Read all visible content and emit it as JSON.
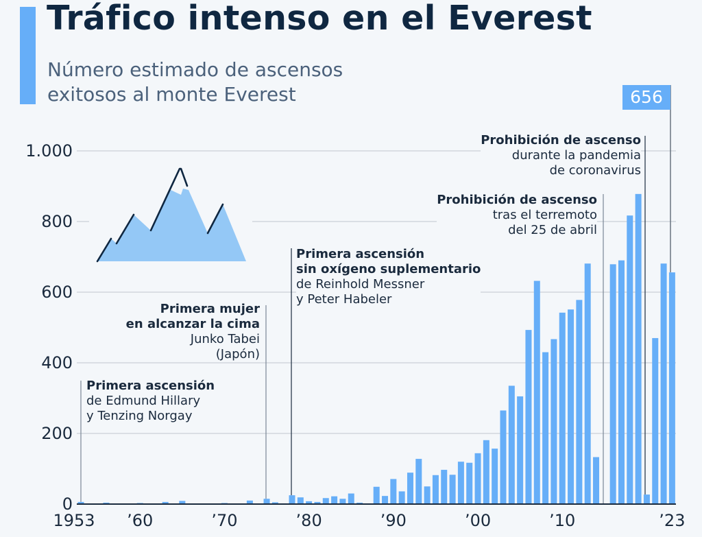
{
  "header": {
    "title": "Tráfico intenso en el Everest",
    "subtitle_line1": "Número estimado de ascensos",
    "subtitle_line2": "exitosos al monte Everest"
  },
  "colors": {
    "bar": "#66aef8",
    "title": "#0f2741",
    "background": "#f4f7fa",
    "mountain": "#94c8f6"
  },
  "icon": "mountain-icon",
  "chart_data": {
    "type": "bar",
    "title": "Tráfico intenso en el Everest",
    "subtitle": "Número estimado de ascensos exitosos al monte Everest",
    "xlabel": "",
    "ylabel": "",
    "ylim": [
      0,
      1000
    ],
    "yticks": [
      0,
      200,
      400,
      600,
      800,
      1000
    ],
    "ytick_labels": [
      "0",
      "200",
      "400",
      "600",
      "800",
      "1.000"
    ],
    "xticks": [
      1953,
      1960,
      1970,
      1980,
      1990,
      2000,
      2010,
      2023
    ],
    "xtick_labels": [
      "1953",
      "’60",
      "’70",
      "’80",
      "’90",
      "’00",
      "’10",
      "’23"
    ],
    "grid": true,
    "x": [
      1953,
      1954,
      1955,
      1956,
      1957,
      1958,
      1959,
      1960,
      1961,
      1962,
      1963,
      1964,
      1965,
      1966,
      1967,
      1968,
      1969,
      1970,
      1971,
      1972,
      1973,
      1974,
      1975,
      1976,
      1977,
      1978,
      1979,
      1980,
      1981,
      1982,
      1983,
      1984,
      1985,
      1986,
      1987,
      1988,
      1989,
      1990,
      1991,
      1992,
      1993,
      1994,
      1995,
      1996,
      1997,
      1998,
      1999,
      2000,
      2001,
      2002,
      2003,
      2004,
      2005,
      2006,
      2007,
      2008,
      2009,
      2010,
      2011,
      2012,
      2013,
      2014,
      2015,
      2016,
      2017,
      2018,
      2019,
      2020,
      2021,
      2022,
      2023
    ],
    "values": [
      6,
      0,
      0,
      4,
      0,
      0,
      0,
      3,
      0,
      0,
      6,
      0,
      9,
      0,
      0,
      0,
      0,
      3,
      0,
      0,
      10,
      0,
      15,
      5,
      2,
      25,
      19,
      8,
      6,
      17,
      22,
      15,
      30,
      4,
      2,
      49,
      23,
      71,
      36,
      89,
      128,
      50,
      82,
      97,
      83,
      120,
      117,
      144,
      181,
      157,
      265,
      335,
      305,
      493,
      632,
      430,
      467,
      542,
      551,
      578,
      681,
      133,
      0,
      679,
      690,
      817,
      878,
      27,
      470,
      681,
      656
    ],
    "highlight": {
      "year": 2023,
      "label": "656"
    },
    "annotations": [
      {
        "year": 1953,
        "bold": [
          "Primera ascensión"
        ],
        "normal": [
          "de Edmund Hillary",
          "y Tenzing Norgay"
        ]
      },
      {
        "year": 1975,
        "bold": [
          "Primera mujer",
          "en alcanzar la cima"
        ],
        "normal": [
          "Junko Tabei",
          "(Japón)"
        ]
      },
      {
        "year": 1978,
        "bold": [
          "Primera ascensión",
          "sin oxígeno suplementario"
        ],
        "normal": [
          "de Reinhold Messner",
          "y Peter Habeler"
        ]
      },
      {
        "year": 2015,
        "bold": [
          "Prohibición de ascenso"
        ],
        "normal": [
          "tras el terremoto",
          "del 25 de abril"
        ]
      },
      {
        "year": 2020,
        "bold": [
          "Prohibición de ascenso"
        ],
        "normal": [
          "durante la pandemia",
          "de coronavirus"
        ]
      }
    ]
  }
}
